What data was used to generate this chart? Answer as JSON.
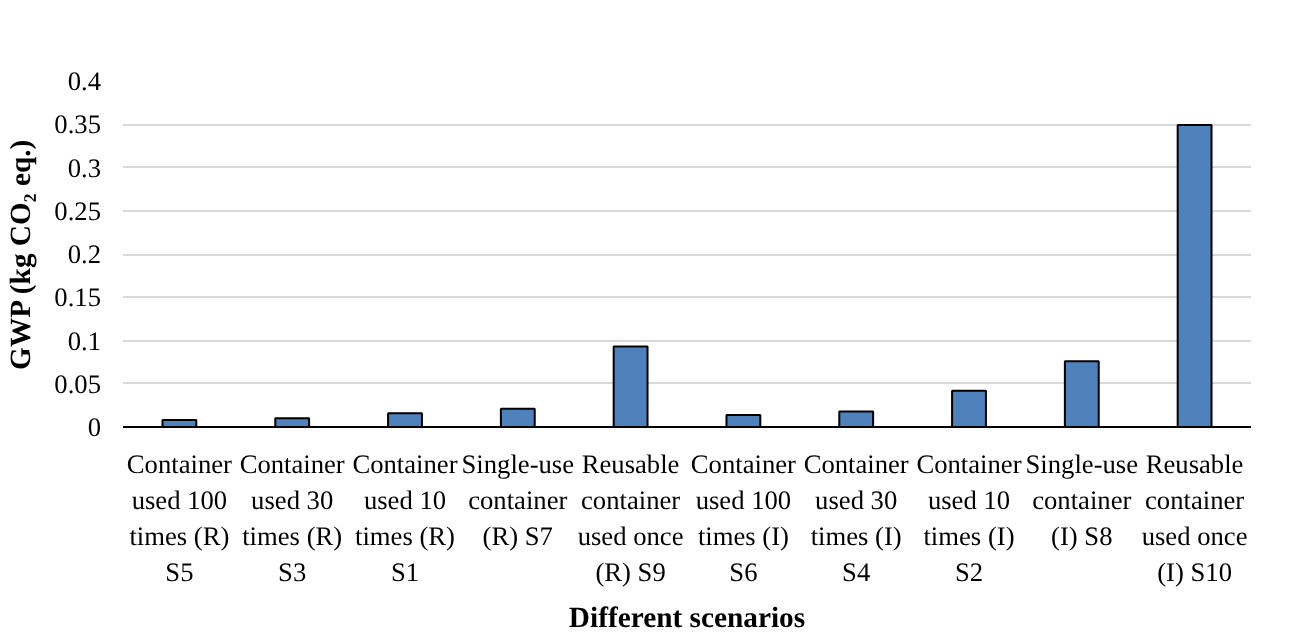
{
  "chart_data": {
    "type": "bar",
    "xlabel": "Different scenarios",
    "ylabel": "GWP (kg CO₂ eq.)",
    "categories": [
      "Container\nused 100\ntimes (R)\nS5",
      "Container\nused 30\ntimes (R)\nS3",
      "Container\nused 10\ntimes (R)\nS1",
      "Single-use\ncontainer\n(R) S7",
      "Reusable\ncontainer\nused once\n(R) S9",
      "Container\nused 100\ntimes (I)\nS6",
      "Container\nused 30\ntimes (I)\nS4",
      "Container\nused 10\ntimes (I)\nS2",
      "Single-use\ncontainer\n(I) S8",
      "Reusable\ncontainer\nused once\n(I) S10"
    ],
    "values": [
      0.008,
      0.01,
      0.016,
      0.021,
      0.093,
      0.014,
      0.018,
      0.042,
      0.076,
      0.349
    ],
    "color": "#4f81bd",
    "ylim": [
      0,
      0.4
    ],
    "yticks": [
      0,
      0.05,
      0.1,
      0.15,
      0.2,
      0.25,
      0.3,
      0.35,
      0.4
    ],
    "grid": "y"
  }
}
